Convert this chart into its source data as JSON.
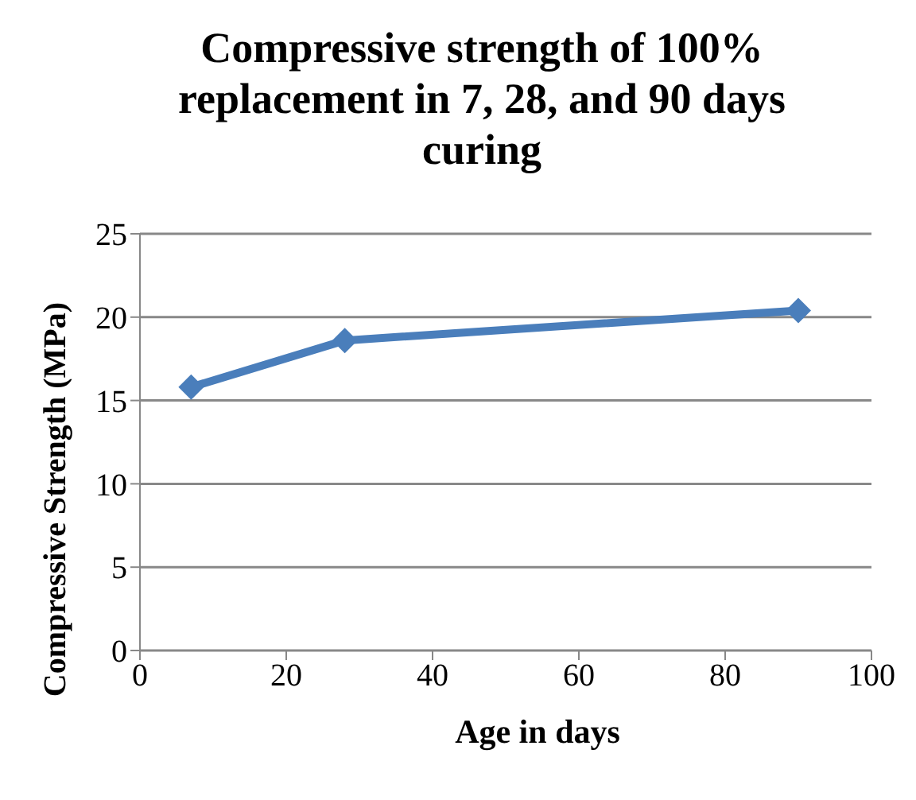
{
  "chart_data": {
    "type": "line",
    "title": "Compressive strength of 100% replacement in 7, 28, and 90 days curing",
    "xlabel": "Age in days",
    "ylabel": "Compressive Strength (MPa)",
    "x": [
      7,
      28,
      90
    ],
    "series": [
      {
        "color": "#4a7ebb",
        "values": [
          15.8,
          18.6,
          20.4
        ]
      }
    ],
    "xlim": [
      0,
      100
    ],
    "xticks": [
      0,
      20,
      40,
      60,
      80,
      100
    ],
    "ylim": [
      0,
      25
    ],
    "yticks": [
      0,
      5,
      10,
      15,
      20,
      25
    ],
    "grid": "y",
    "legend": false,
    "marker": "diamond",
    "line_style": "solid"
  }
}
